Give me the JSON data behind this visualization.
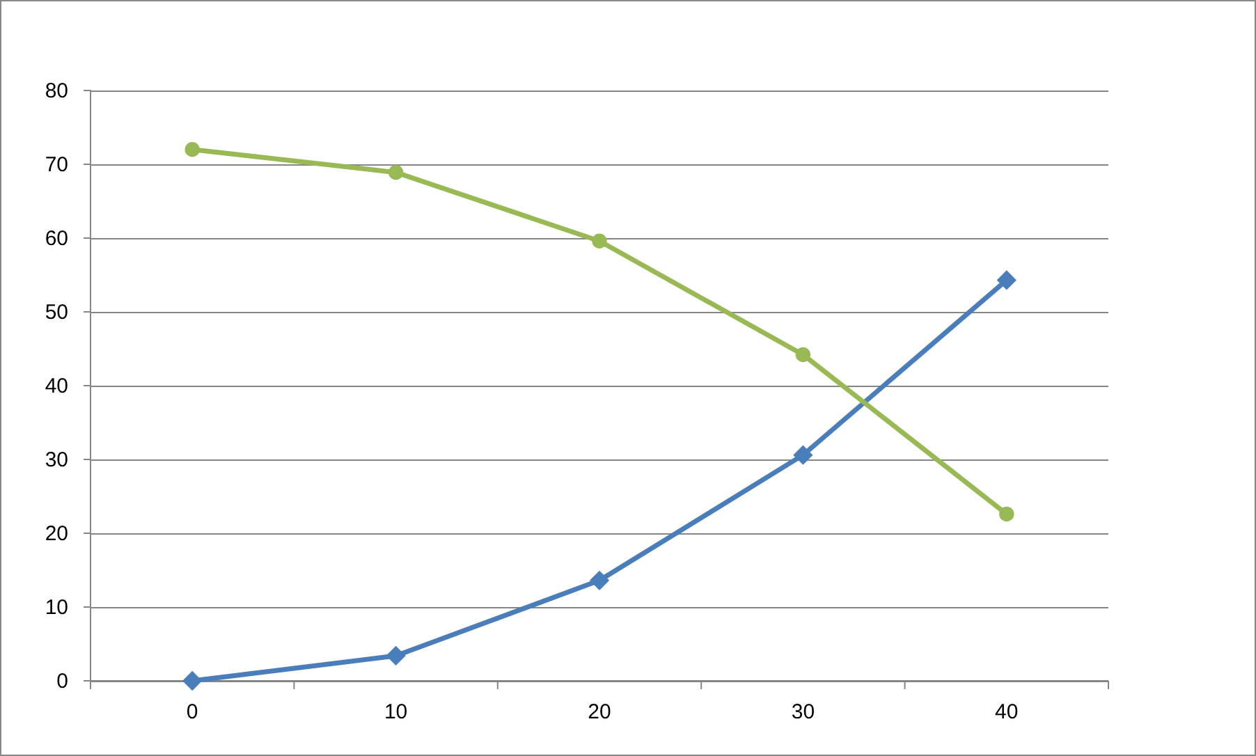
{
  "chart_data": {
    "type": "line",
    "categories": [
      "0",
      "10",
      "20",
      "30",
      "40"
    ],
    "series": [
      {
        "color": "#4a7ebb",
        "marker": "diamond",
        "values": [
          0,
          3.4,
          13.6,
          30.6,
          54.3
        ]
      },
      {
        "color": "#98b954",
        "marker": "circle",
        "values": [
          72,
          68.9,
          59.6,
          44.2,
          22.6
        ]
      }
    ],
    "ylim": [
      0,
      80
    ],
    "yticks": [
      0,
      10,
      20,
      30,
      40,
      50,
      60,
      70,
      80
    ],
    "grid": "y"
  }
}
